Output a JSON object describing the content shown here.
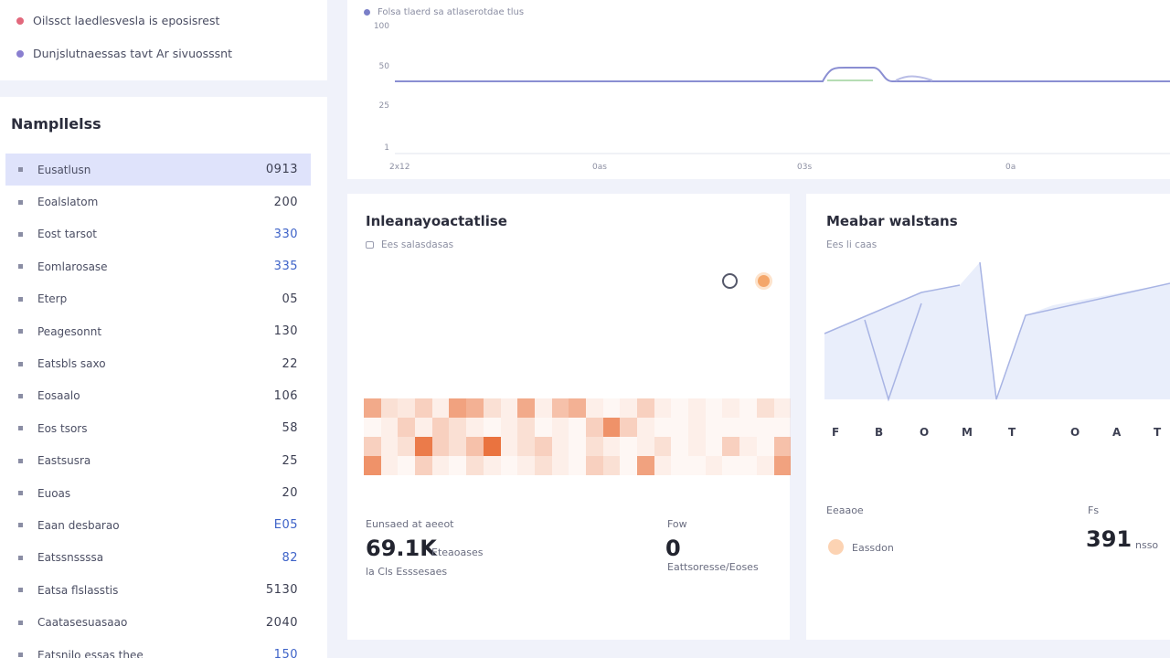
{
  "notifications": [
    {
      "text": "Oilssct laedlesvesla is eposisrest",
      "color": "#e2687c"
    },
    {
      "text": "Dunjslutnaessas tavt Ar sivuosssnt",
      "color": "#8a7fd0"
    }
  ],
  "list": {
    "title": "Nampllelss",
    "items": [
      {
        "label": "Eusatlusn",
        "value": "0913",
        "active": true,
        "blue": false
      },
      {
        "label": "Eoalslatom",
        "value": "200",
        "active": false,
        "blue": false
      },
      {
        "label": "Eost tarsot",
        "value": "330",
        "active": false,
        "blue": true
      },
      {
        "label": "Eomlarosase",
        "value": "335",
        "active": false,
        "blue": true
      },
      {
        "label": "Eterp",
        "value": "05",
        "active": false,
        "blue": false
      },
      {
        "label": "Peagesonnt",
        "value": "130",
        "active": false,
        "blue": false
      },
      {
        "label": "Eatsbls saxo",
        "value": "22",
        "active": false,
        "blue": false
      },
      {
        "label": "Eosaalo",
        "value": "106",
        "active": false,
        "blue": false
      },
      {
        "label": "Eos tsors",
        "value": "58",
        "active": false,
        "blue": false
      },
      {
        "label": "Eastsusra",
        "value": "25",
        "active": false,
        "blue": false
      },
      {
        "label": "Euoas",
        "value": "20",
        "active": false,
        "blue": false
      },
      {
        "label": "Eaan desbarao",
        "value": "E05",
        "active": false,
        "blue": true
      },
      {
        "label": "Eatssnssssa",
        "value": "82",
        "active": false,
        "blue": true
      },
      {
        "label": "Eatsa flslasstis",
        "value": "5130",
        "active": false,
        "blue": false
      },
      {
        "label": "Caatasesuasaao",
        "value": "2040",
        "active": false,
        "blue": false
      },
      {
        "label": "Eatsnilo essas thee",
        "value": "150",
        "active": false,
        "blue": true
      }
    ]
  },
  "top_chart": {
    "legend": "Folsa tlaerd sa atlaserotdae tlus",
    "legend_color": "#7a7fc8",
    "y_ticks": [
      "100",
      "50",
      "25",
      "1"
    ],
    "x_ticks": [
      "2x12",
      "0as",
      "03s",
      "0a"
    ]
  },
  "heatmap_card": {
    "title": "Inleanayoactatlise",
    "subtitle": "Ees salasdasas",
    "stat1": {
      "label": "Eunsaed at aeeot",
      "value": "69.1K",
      "unit": "Eteaoases",
      "sub": "la Cls Esssesaes"
    },
    "stat2": {
      "label": "Fow",
      "value": "0",
      "unit": "Eattsoresse/Eoses"
    },
    "heat_values": [
      [
        0.55,
        0.2,
        0.15,
        0.3,
        0.1,
        0.6,
        0.5,
        0.2,
        0.1,
        0.55,
        0.1,
        0.4,
        0.5,
        0.1,
        0.05,
        0.1,
        0.3,
        0.1,
        0.05,
        0.1,
        0.05,
        0.1,
        0.05,
        0.2,
        0.1
      ],
      [
        0.05,
        0.1,
        0.3,
        0.1,
        0.3,
        0.2,
        0.1,
        0.05,
        0.1,
        0.2,
        0.05,
        0.1,
        0.05,
        0.3,
        0.7,
        0.3,
        0.1,
        0.05,
        0.05,
        0.1,
        0.05,
        0.05,
        0.05,
        0.05,
        0.05
      ],
      [
        0.3,
        0.1,
        0.2,
        0.85,
        0.3,
        0.2,
        0.4,
        0.9,
        0.1,
        0.2,
        0.3,
        0.1,
        0.05,
        0.2,
        0.1,
        0.05,
        0.1,
        0.2,
        0.05,
        0.1,
        0.05,
        0.3,
        0.1,
        0.05,
        0.4
      ],
      [
        0.7,
        0.1,
        0.05,
        0.3,
        0.1,
        0.05,
        0.2,
        0.1,
        0.05,
        0.1,
        0.2,
        0.1,
        0.05,
        0.3,
        0.2,
        0.05,
        0.6,
        0.1,
        0.05,
        0.05,
        0.1,
        0.05,
        0.05,
        0.1,
        0.6
      ]
    ]
  },
  "area_card": {
    "title": "Meabar walstans",
    "subtitle": "Ees li caas",
    "x_ticks": [
      "F",
      "B",
      "O",
      "M",
      "T",
      "",
      "O",
      "A",
      "T"
    ],
    "legend_label": "Eeaaoe",
    "legend_item": "Eassdon",
    "stat_label": "Fs",
    "stat_value": "391",
    "stat_unit": "nsso"
  },
  "colors": {
    "accent": "#7a7fc8",
    "heat": "#e8642a",
    "area_fill": "#e9eefb",
    "area_line": "#a8b4e4"
  }
}
